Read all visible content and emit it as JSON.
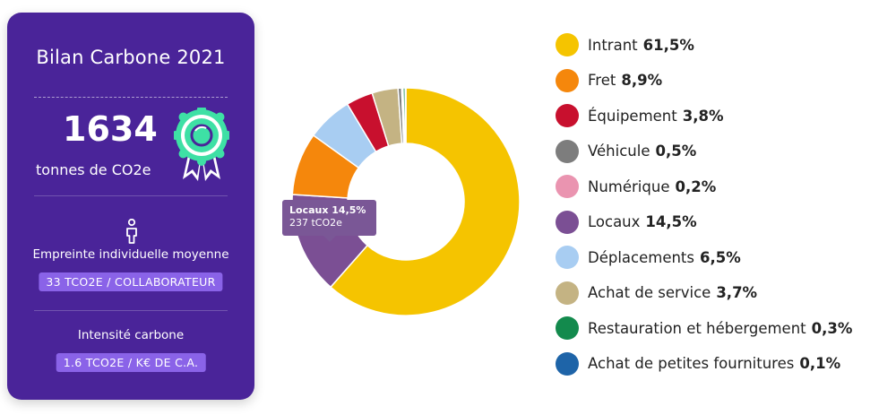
{
  "card": {
    "title": "Bilan Carbone 2021",
    "total": "1634",
    "total_unit": "tonnes de CO2e",
    "individual_label": "Empreinte individuelle moyenne",
    "individual_value": "33 TCO2E / COLLABORATEUR",
    "intensity_label": "Intensité carbone",
    "intensity_value": "1.6 TCO2E / K€ DE C.A."
  },
  "tooltip": {
    "title": "Locaux 14,5%",
    "value": "237 tCO2e"
  },
  "chart_data": {
    "type": "pie",
    "donut": true,
    "title": "",
    "legend_position": "right",
    "slices": [
      {
        "name": "Intrant",
        "label": "61,5%",
        "value": 61.5,
        "color": "#f5c400"
      },
      {
        "name": "Fret",
        "label": "8,9%",
        "value": 8.9,
        "color": "#f5870c"
      },
      {
        "name": "Équipement",
        "label": "3,8%",
        "value": 3.8,
        "color": "#c8102e"
      },
      {
        "name": "Véhicule",
        "label": "0,5%",
        "value": 0.5,
        "color": "#7d7d7d"
      },
      {
        "name": "Numérique",
        "label": "0,2%",
        "value": 0.2,
        "color": "#ea94b0"
      },
      {
        "name": "Locaux",
        "label": "14,5%",
        "value": 14.5,
        "color": "#7b4f94"
      },
      {
        "name": "Déplacements",
        "label": "6,5%",
        "value": 6.5,
        "color": "#a8cdf2"
      },
      {
        "name": "Achat de service",
        "label": "3,7%",
        "value": 3.7,
        "color": "#c4b383"
      },
      {
        "name": "Restauration et hébergement",
        "label": "0,3%",
        "value": 0.3,
        "color": "#138a4d"
      },
      {
        "name": "Achat de petites fournitures",
        "label": "0,1%",
        "value": 0.1,
        "color": "#1e64a8"
      }
    ],
    "chart_order": [
      "Intrant",
      "Locaux",
      "Fret",
      "Déplacements",
      "Équipement",
      "Achat de service",
      "Véhicule",
      "Numérique",
      "Restauration et hébergement",
      "Achat de petites fournitures"
    ]
  }
}
